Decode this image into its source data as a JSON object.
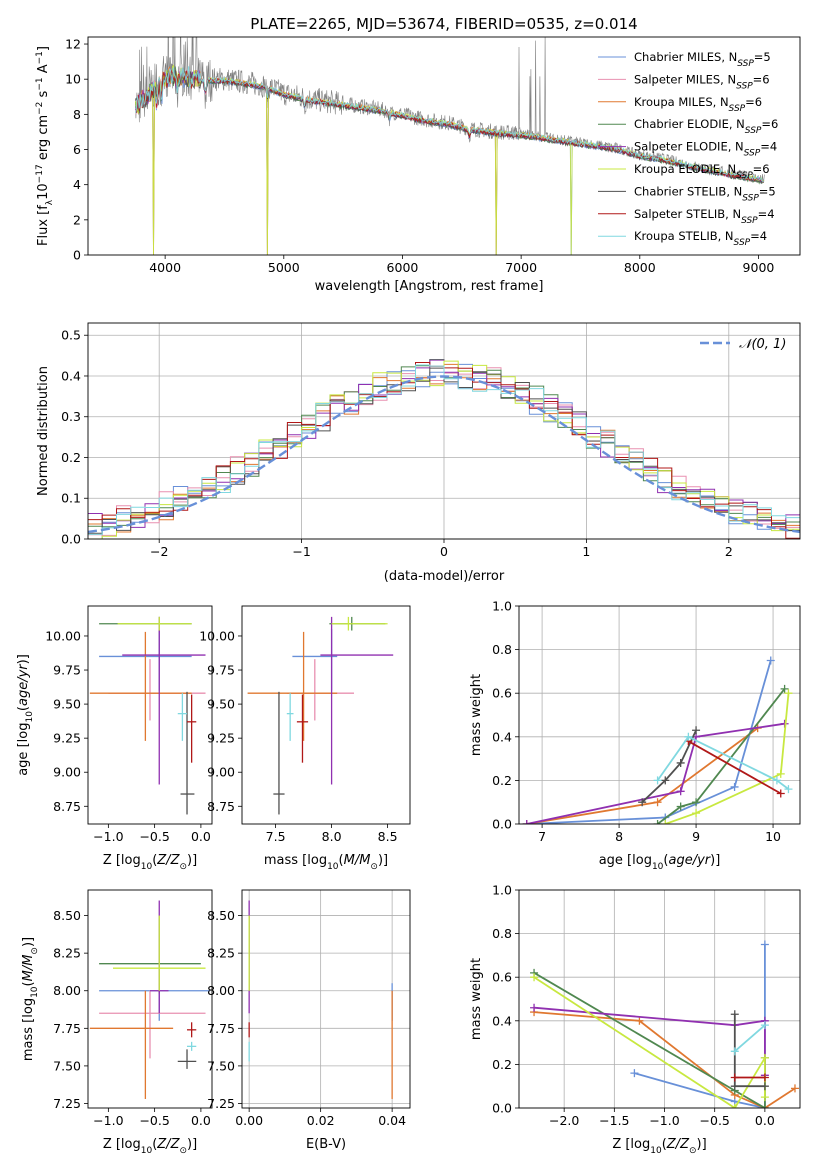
{
  "figure_title": "PLATE=2265, MJD=53674, FIBERID=0535, z=0.014",
  "models": [
    {
      "name": "Chabrier MILES",
      "nssp": "5",
      "color": "#6890d8"
    },
    {
      "name": "Salpeter MILES",
      "nssp": "6",
      "color": "#e890b0"
    },
    {
      "name": "Kroupa MILES",
      "nssp": "6",
      "color": "#e07830"
    },
    {
      "name": "Chabrier ELODIE",
      "nssp": "6",
      "color": "#508850"
    },
    {
      "name": "Salpeter ELODIE",
      "nssp": "4",
      "color": "#9030b0"
    },
    {
      "name": "Kroupa ELODIE",
      "nssp": "6",
      "color": "#c8e840"
    },
    {
      "name": "Chabrier STELIB",
      "nssp": "5",
      "color": "#505050"
    },
    {
      "name": "Salpeter STELIB",
      "nssp": "4",
      "color": "#b01818"
    },
    {
      "name": "Kroupa STELIB",
      "nssp": "4",
      "color": "#80d8e0"
    }
  ],
  "chart_data": [
    {
      "id": "spectrum",
      "type": "line",
      "title": "PLATE=2265, MJD=53674, FIBERID=0535, z=0.014",
      "xlabel": "wavelength [Angstrom, rest frame]",
      "ylabel": "Flux [f_λ 10^-17 erg cm^-2 s^-1 A^-1]",
      "xlim": [
        3350,
        9350
      ],
      "ylim": [
        0,
        12.4
      ],
      "xticks": [
        4000,
        5000,
        6000,
        7000,
        8000,
        9000
      ],
      "yticks": [
        0,
        2,
        4,
        6,
        8,
        10,
        12
      ],
      "legend": "upper-right",
      "data_envelope": [
        [
          3750,
          8.5
        ],
        [
          3900,
          9.5
        ],
        [
          4000,
          10.2
        ],
        [
          4100,
          10.3
        ],
        [
          4300,
          10.0
        ],
        [
          4500,
          10.0
        ],
        [
          4700,
          9.8
        ],
        [
          4861,
          9.6
        ],
        [
          5000,
          9.2
        ],
        [
          5200,
          8.9
        ],
        [
          5400,
          8.7
        ],
        [
          5600,
          8.5
        ],
        [
          5800,
          8.3
        ],
        [
          6000,
          8.0
        ],
        [
          6200,
          7.7
        ],
        [
          6400,
          7.5
        ],
        [
          6563,
          7.2
        ],
        [
          6800,
          7.0
        ],
        [
          7000,
          6.9
        ],
        [
          7200,
          6.7
        ],
        [
          7400,
          6.5
        ],
        [
          7600,
          6.3
        ],
        [
          7800,
          6.1
        ],
        [
          8000,
          5.7
        ],
        [
          8200,
          5.5
        ],
        [
          8500,
          5.0
        ],
        [
          8800,
          4.6
        ],
        [
          9050,
          4.3
        ]
      ],
      "model_ends": [
        9050,
        7420,
        7420,
        9050,
        9050,
        9050,
        9050,
        9050,
        9050
      ],
      "absorption_dips": [
        [
          3900,
          0.0
        ],
        [
          4861,
          0.0
        ],
        [
          6790,
          0.0
        ],
        [
          7420,
          0.0
        ]
      ]
    },
    {
      "id": "residuals",
      "type": "step",
      "xlabel": "(data-model)/error",
      "ylabel": "Normed distribution",
      "xlim": [
        -2.5,
        2.5
      ],
      "ylim": [
        0,
        0.53
      ],
      "xticks": [
        -2,
        -1,
        0,
        1,
        2
      ],
      "yticks": [
        0.0,
        0.1,
        0.2,
        0.3,
        0.4,
        0.5
      ],
      "grid": true,
      "legend": "upper-right",
      "reference_curve": {
        "label": "𝒩(0, 1)",
        "mean": 0,
        "sigma": 1,
        "color": "#6890d8"
      },
      "bin_width": 0.1
    },
    {
      "id": "age-vs-Z",
      "type": "scatter",
      "xlabel": "Z [log10(Z/Z⊙)]",
      "ylabel": "age [log10(age/yr)]",
      "xlim": [
        -1.22,
        0.12
      ],
      "ylim": [
        8.62,
        10.22
      ],
      "xticks": [
        -1.0,
        -0.5,
        0.0
      ],
      "yticks": [
        8.75,
        9.0,
        9.25,
        9.5,
        9.75,
        10.0
      ],
      "points": [
        {
          "model": 0,
          "x": -0.45,
          "y": 9.85,
          "xerr": [
            0.65,
            0.35
          ],
          "yerr": [
            0.25,
            0.2
          ]
        },
        {
          "model": 1,
          "x": -0.55,
          "y": 9.58,
          "xerr": [
            0.45,
            0.6
          ],
          "yerr": [
            0.2,
            0.25
          ]
        },
        {
          "model": 2,
          "x": -0.6,
          "y": 9.58,
          "xerr": [
            0.6,
            0.5
          ],
          "yerr": [
            0.35,
            0.45
          ]
        },
        {
          "model": 3,
          "x": -0.45,
          "y": 10.09,
          "xerr": [
            0.65,
            0.35
          ],
          "yerr": [
            0.05,
            0.05
          ]
        },
        {
          "model": 4,
          "x": -0.45,
          "y": 9.86,
          "xerr": [
            0.4,
            0.5
          ],
          "yerr": [
            0.95,
            0.28
          ]
        },
        {
          "model": 5,
          "x": -0.45,
          "y": 10.09,
          "xerr": [
            0.45,
            0.35
          ],
          "yerr": [
            0.05,
            0.05
          ]
        },
        {
          "model": 6,
          "x": -0.15,
          "y": 8.84,
          "xerr": [
            0.07,
            0.08
          ],
          "yerr": [
            0.15,
            0.75
          ]
        },
        {
          "model": 7,
          "x": -0.1,
          "y": 9.37,
          "xerr": [
            0.05,
            0.05
          ],
          "yerr": [
            0.3,
            0.2
          ]
        },
        {
          "model": 8,
          "x": -0.2,
          "y": 9.43,
          "xerr": [
            0.05,
            0.05
          ],
          "yerr": [
            0.2,
            0.15
          ]
        }
      ]
    },
    {
      "id": "age-vs-mass",
      "type": "scatter",
      "xlabel": "mass [log10(M/M⊙)]",
      "ylabel": "",
      "xlim": [
        7.2,
        8.7
      ],
      "ylim": [
        8.62,
        10.22
      ],
      "xticks": [
        7.5,
        8.0,
        8.5
      ],
      "yticks": [
        8.75,
        9.0,
        9.25,
        9.5,
        9.75,
        10.0
      ],
      "points": [
        {
          "model": 0,
          "x": 8.0,
          "y": 9.85,
          "xerr": [
            0.35,
            0.05
          ],
          "yerr": [
            0.25,
            0.2
          ]
        },
        {
          "model": 1,
          "x": 7.85,
          "y": 9.58,
          "xerr": [
            0.25,
            0.35
          ],
          "yerr": [
            0.2,
            0.25
          ]
        },
        {
          "model": 2,
          "x": 7.75,
          "y": 9.58,
          "xerr": [
            0.5,
            0.3
          ],
          "yerr": [
            0.35,
            0.45
          ]
        },
        {
          "model": 3,
          "x": 8.18,
          "y": 10.09,
          "xerr": [
            0.2,
            0.3
          ],
          "yerr": [
            0.05,
            0.05
          ]
        },
        {
          "model": 4,
          "x": 8.0,
          "y": 9.86,
          "xerr": [
            0.1,
            0.55
          ],
          "yerr": [
            0.95,
            0.28
          ]
        },
        {
          "model": 5,
          "x": 8.15,
          "y": 10.09,
          "xerr": [
            0.15,
            0.35
          ],
          "yerr": [
            0.05,
            0.05
          ]
        },
        {
          "model": 6,
          "x": 7.53,
          "y": 8.84,
          "xerr": [
            0.05,
            0.05
          ],
          "yerr": [
            0.15,
            0.75
          ]
        },
        {
          "model": 7,
          "x": 7.74,
          "y": 9.37,
          "xerr": [
            0.05,
            0.05
          ],
          "yerr": [
            0.3,
            0.2
          ]
        },
        {
          "model": 8,
          "x": 7.63,
          "y": 9.43,
          "xerr": [
            0.03,
            0.03
          ],
          "yerr": [
            0.2,
            0.15
          ]
        }
      ]
    },
    {
      "id": "weight-vs-age",
      "type": "line",
      "xlabel": "age [log10(age/yr)]",
      "ylabel": "mass weight",
      "xlim": [
        6.7,
        10.35
      ],
      "ylim": [
        0,
        1.0
      ],
      "xticks": [
        7,
        8,
        9,
        10
      ],
      "yticks": [
        0.0,
        0.2,
        0.4,
        0.6,
        0.8,
        1.0
      ],
      "grid": true,
      "series": [
        {
          "model": 0,
          "x": [
            6.8,
            8.6,
            9.5,
            9.97
          ],
          "y": [
            0.0,
            0.03,
            0.17,
            0.75
          ]
        },
        {
          "model": 2,
          "x": 6.8,
          "y": 0
        },
        {
          "model": 2,
          "x": [
            6.8,
            8.5,
            9.8
          ],
          "y": [
            0.0,
            0.1,
            0.44
          ]
        },
        {
          "model": 3,
          "x": [
            8.5,
            8.8,
            9.0,
            10.15
          ],
          "y": [
            0.0,
            0.08,
            0.1,
            0.62
          ]
        },
        {
          "model": 4,
          "x": [
            6.8,
            8.8,
            9.0,
            10.15
          ],
          "y": [
            0.0,
            0.15,
            0.4,
            0.46
          ]
        },
        {
          "model": 5,
          "x": [
            8.6,
            9.0,
            10.1,
            10.2
          ],
          "y": [
            0.0,
            0.05,
            0.23,
            0.6
          ]
        },
        {
          "model": 6,
          "x": [
            8.3,
            8.6,
            8.8,
            9.0
          ],
          "y": [
            0.1,
            0.2,
            0.28,
            0.43
          ]
        },
        {
          "model": 7,
          "x": [
            8.9,
            10.1
          ],
          "y": [
            0.38,
            0.14
          ]
        },
        {
          "model": 8,
          "x": [
            8.5,
            8.9,
            10.05,
            10.2
          ],
          "y": [
            0.2,
            0.4,
            0.2,
            0.16
          ]
        }
      ]
    },
    {
      "id": "mass-vs-Z",
      "type": "scatter",
      "xlabel": "Z [log10(Z/Z⊙)]",
      "ylabel": "mass [log10(M/M⊙)]",
      "xlim": [
        -1.22,
        0.12
      ],
      "ylim": [
        7.22,
        8.67
      ],
      "xticks": [
        -1.0,
        -0.5,
        0.0
      ],
      "yticks": [
        7.25,
        7.5,
        7.75,
        8.0,
        8.25,
        8.5
      ],
      "points": [
        {
          "model": 0,
          "x": -0.45,
          "y": 8.0,
          "xerr": [
            0.65,
            0.55
          ],
          "yerr": [
            0.2,
            0.05
          ]
        },
        {
          "model": 1,
          "x": -0.55,
          "y": 7.85,
          "xerr": [
            0.55,
            0.6
          ],
          "yerr": [
            0.3,
            0.15
          ]
        },
        {
          "model": 2,
          "x": -0.6,
          "y": 7.75,
          "xerr": [
            0.6,
            0.3
          ],
          "yerr": [
            0.47,
            0.25
          ]
        },
        {
          "model": 3,
          "x": -0.45,
          "y": 8.18,
          "xerr": [
            0.65,
            0.45
          ],
          "yerr": [
            0.2,
            0.3
          ]
        },
        {
          "model": 4,
          "x": -0.45,
          "y": 8.0,
          "xerr": [
            0.1,
            0.1
          ],
          "yerr": [
            0.15,
            0.6
          ]
        },
        {
          "model": 5,
          "x": -0.45,
          "y": 8.15,
          "xerr": [
            0.5,
            0.5
          ],
          "yerr": [
            0.15,
            0.35
          ]
        },
        {
          "model": 6,
          "x": -0.15,
          "y": 7.53,
          "xerr": [
            0.1,
            0.1
          ],
          "yerr": [
            0.05,
            0.08
          ]
        },
        {
          "model": 7,
          "x": -0.1,
          "y": 7.74,
          "xerr": [
            0.05,
            0.05
          ],
          "yerr": [
            0.05,
            0.05
          ]
        },
        {
          "model": 8,
          "x": -0.1,
          "y": 7.63,
          "xerr": [
            0.05,
            0.05
          ],
          "yerr": [
            0.03,
            0.03
          ]
        }
      ]
    },
    {
      "id": "mass-vs-EBV",
      "type": "scatter",
      "xlabel": "E(B-V)",
      "ylabel": "",
      "xlim": [
        -0.002,
        0.045
      ],
      "ylim": [
        7.22,
        8.67
      ],
      "xticks": [
        0.0,
        0.02,
        0.04
      ],
      "yticks": [
        7.25,
        7.5,
        7.75,
        8.0,
        8.25,
        8.5
      ],
      "grid": true,
      "points": [
        {
          "model": 0,
          "x": 0.04,
          "y": 8.0,
          "yerr": [
            0.2,
            0.05
          ]
        },
        {
          "model": 2,
          "x": 0.04,
          "y": 7.75,
          "yerr": [
            0.47,
            0.25
          ]
        },
        {
          "model": 4,
          "x": 0.0,
          "y": 8.0,
          "yerr": [
            0.15,
            0.6
          ]
        },
        {
          "model": 5,
          "x": 0.0,
          "y": 8.15,
          "yerr": [
            0.15,
            0.35
          ]
        },
        {
          "model": 7,
          "x": 0.0,
          "y": 7.74,
          "yerr": [
            0.05,
            0.05
          ]
        },
        {
          "model": 8,
          "x": 0.0,
          "y": 7.63,
          "yerr": [
            0.1,
            0.03
          ]
        }
      ]
    },
    {
      "id": "weight-vs-Z",
      "type": "line",
      "xlabel": "Z [log10(Z/Z⊙)]",
      "ylabel": "mass weight",
      "xlim": [
        -2.45,
        0.35
      ],
      "ylim": [
        0,
        1.0
      ],
      "xticks": [
        -2.0,
        -1.5,
        -1.0,
        -0.5,
        0.0
      ],
      "yticks": [
        0.0,
        0.2,
        0.4,
        0.6,
        0.8,
        1.0
      ],
      "grid": true,
      "series": [
        {
          "model": 0,
          "x": [
            -1.3,
            -0.3,
            0.0,
            0.0
          ],
          "y": [
            0.16,
            0.03,
            0.0,
            0.75
          ]
        },
        {
          "model": 2,
          "x": [
            -2.3,
            -1.25,
            -0.3,
            0.0,
            0.3
          ],
          "y": [
            0.44,
            0.4,
            0.06,
            0.0,
            0.09
          ]
        },
        {
          "model": 3,
          "x": [
            -2.3,
            -0.3,
            0.0,
            0.0
          ],
          "y": [
            0.62,
            0.08,
            0.0,
            0.23
          ]
        },
        {
          "model": 4,
          "x": [
            -2.3,
            -0.3,
            0.0,
            0.0
          ],
          "y": [
            0.46,
            0.38,
            0.4,
            0.15
          ]
        },
        {
          "model": 5,
          "x": [
            -2.3,
            -0.3,
            0.0,
            0.0
          ],
          "y": [
            0.6,
            0.0,
            0.23,
            0.05
          ]
        },
        {
          "model": 6,
          "x": [
            -0.3,
            -0.3,
            0.0
          ],
          "y": [
            0.43,
            0.1,
            0.1
          ]
        },
        {
          "model": 7,
          "x": [
            -0.3,
            0.0
          ],
          "y": [
            0.14,
            0.14
          ]
        },
        {
          "model": 8,
          "x": [
            -0.3,
            0.0
          ],
          "y": [
            0.26,
            0.38
          ]
        }
      ]
    }
  ]
}
